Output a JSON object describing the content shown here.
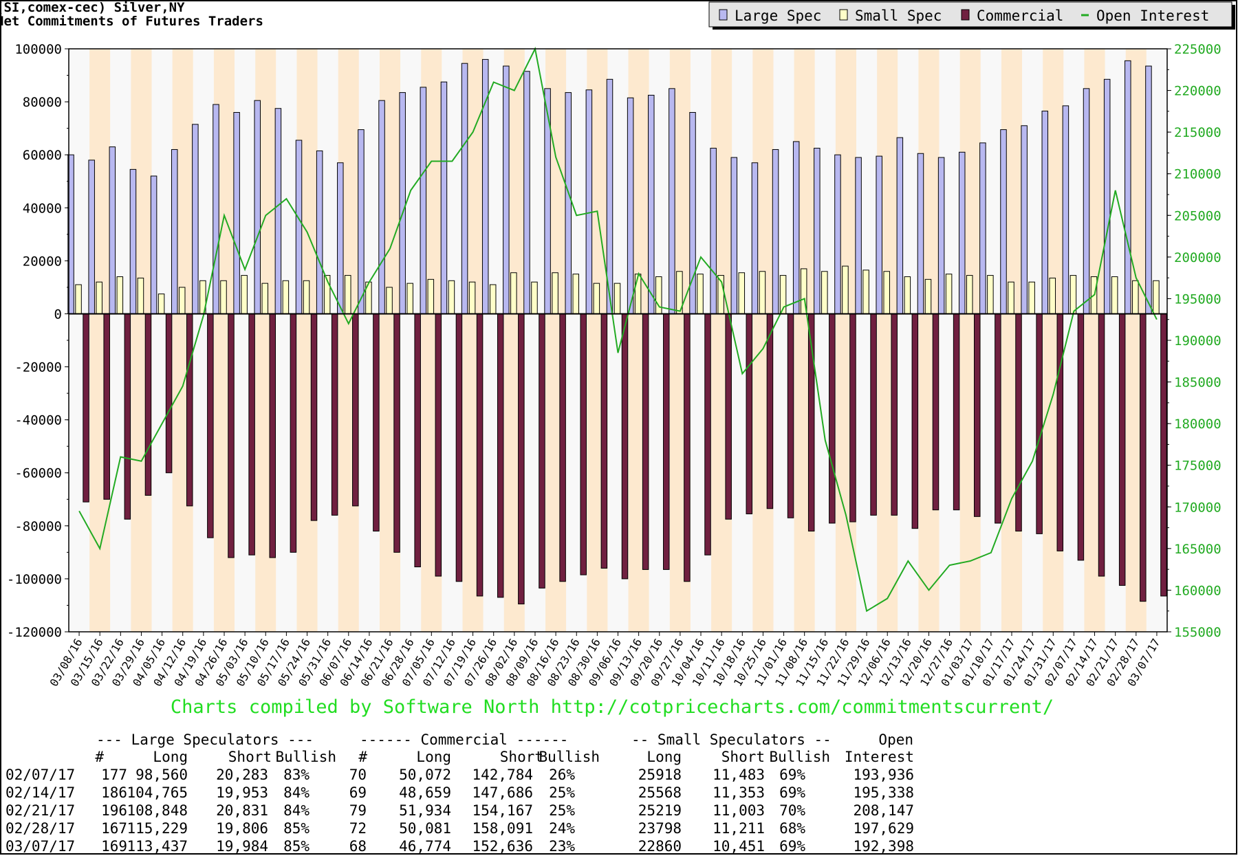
{
  "header": {
    "title_line1": "(SI,comex-cec) Silver,NY",
    "title_line2": "Net Commitments of Futures Traders"
  },
  "legend": {
    "placement": "top-right",
    "items": [
      {
        "label": "Large Spec",
        "color": "#b8b8f0"
      },
      {
        "label": "Small Spec",
        "color": "#ffffc8"
      },
      {
        "label": "Commercial",
        "color": "#702040"
      },
      {
        "label": "Open Interest",
        "color": "#22aa22"
      }
    ]
  },
  "credit": "Charts compiled by Software North  http://cotpricecharts.com/commitmentscurrent/",
  "chart_data": {
    "type": "bar",
    "categories": [
      "03/08/16",
      "03/15/16",
      "03/22/16",
      "03/29/16",
      "04/05/16",
      "04/12/16",
      "04/19/16",
      "04/26/16",
      "05/03/16",
      "05/10/16",
      "05/17/16",
      "05/24/16",
      "05/31/16",
      "06/07/16",
      "06/14/16",
      "06/21/16",
      "06/28/16",
      "07/05/16",
      "07/12/16",
      "07/19/16",
      "07/26/16",
      "08/02/16",
      "08/09/16",
      "08/16/16",
      "08/23/16",
      "08/30/16",
      "09/06/16",
      "09/13/16",
      "09/20/16",
      "09/27/16",
      "10/04/16",
      "10/11/16",
      "10/18/16",
      "10/25/16",
      "11/01/16",
      "11/08/16",
      "11/15/16",
      "11/22/16",
      "11/29/16",
      "12/06/16",
      "12/13/16",
      "12/20/16",
      "12/27/16",
      "01/03/17",
      "01/10/17",
      "01/17/17",
      "01/24/17",
      "01/31/17",
      "02/07/17",
      "02/14/17",
      "02/21/17",
      "02/28/17",
      "03/07/17"
    ],
    "series": [
      {
        "name": "Large Spec",
        "axis": "left",
        "color": "#b8b8f0",
        "values": [
          60000,
          58000,
          63000,
          54500,
          52000,
          62000,
          71500,
          79000,
          76000,
          80500,
          77500,
          65500,
          61500,
          57000,
          69500,
          80500,
          83500,
          85500,
          87500,
          94500,
          96000,
          93500,
          91500,
          85000,
          83500,
          84500,
          88500,
          81500,
          82500,
          85000,
          76000,
          62500,
          59000,
          57000,
          62000,
          65000,
          62500,
          60000,
          59000,
          59500,
          66500,
          60500,
          59000,
          61000,
          64500,
          69500,
          71000,
          76500,
          78500,
          85000,
          88500,
          95500,
          93500
        ]
      },
      {
        "name": "Small Spec",
        "axis": "left",
        "color": "#ffffc8",
        "values": [
          11000,
          12000,
          14000,
          13500,
          7500,
          10000,
          12500,
          12500,
          14500,
          11500,
          12500,
          12500,
          14500,
          14500,
          12000,
          10000,
          11500,
          13000,
          12500,
          12000,
          11000,
          15500,
          12000,
          15500,
          15000,
          11500,
          11500,
          15000,
          14000,
          16000,
          15000,
          14500,
          15500,
          16000,
          14500,
          17000,
          16000,
          18000,
          16500,
          16000,
          14000,
          13000,
          15000,
          14500,
          14500,
          12000,
          12000,
          13500,
          14500,
          14000,
          14000,
          12500,
          12500
        ]
      },
      {
        "name": "Commercial",
        "axis": "left",
        "color": "#702040",
        "values": [
          -71000,
          -70000,
          -77500,
          -68500,
          -60000,
          -72500,
          -84500,
          -92000,
          -91000,
          -92000,
          -90000,
          -78000,
          -76000,
          -72500,
          -82000,
          -90000,
          -95500,
          -99000,
          -101000,
          -106500,
          -107000,
          -109500,
          -103500,
          -101000,
          -98500,
          -96000,
          -100000,
          -96500,
          -96500,
          -101000,
          -91000,
          -77500,
          -75500,
          -73500,
          -77000,
          -82000,
          -79000,
          -78500,
          -76000,
          -76000,
          -81000,
          -74000,
          -74000,
          -76500,
          -79000,
          -82000,
          -83000,
          -89500,
          -93000,
          -99000,
          -102500,
          -108500,
          -106500
        ]
      },
      {
        "name": "Open Interest",
        "axis": "right",
        "color": "#22aa22",
        "values": [
          169500,
          165000,
          176000,
          175500,
          180000,
          184500,
          193000,
          205000,
          198500,
          205000,
          207000,
          203000,
          197000,
          192000,
          197000,
          201000,
          208000,
          211500,
          211500,
          215000,
          221000,
          220000,
          225000,
          212000,
          205000,
          205500,
          188500,
          198000,
          194000,
          193500,
          200000,
          197000,
          186000,
          189000,
          194000,
          195000,
          178000,
          169000,
          157500,
          159000,
          163500,
          160000,
          163000,
          163500,
          164500,
          171000,
          175500,
          183500,
          193500,
          195500,
          208000,
          197500,
          192500
        ]
      }
    ],
    "ylim": [
      -120000,
      100000
    ],
    "y_ticks": [
      "100000",
      "80000",
      "60000",
      "40000",
      "20000",
      "0",
      "-20000",
      "-40000",
      "-60000",
      "-80000",
      "-100000",
      "-120000"
    ],
    "y2lim": [
      155000,
      225000
    ],
    "y2_ticks": [
      "225000",
      "220000",
      "215000",
      "210000",
      "205000",
      "200000",
      "195000",
      "190000",
      "185000",
      "180000",
      "175000",
      "170000",
      "165000",
      "160000",
      "155000"
    ],
    "grid": false
  },
  "table": {
    "group_headers": [
      "--- Large Speculators ---",
      "------ Commercial ------",
      "-- Small Speculators --",
      "Open"
    ],
    "col_headers": [
      "#",
      "Long",
      "Short",
      "Bullish",
      "#",
      "Long",
      "Short",
      "Bullish",
      "Long",
      "Short",
      "Bullish",
      "Interest"
    ],
    "rows": [
      [
        "02/07/17",
        "177",
        "98,560",
        "20,283",
        "83%",
        "70",
        "50,072",
        "142,784",
        "26%",
        "25918",
        "11,483",
        "69%",
        "193,936"
      ],
      [
        "02/14/17",
        "186",
        "104,765",
        "19,953",
        "84%",
        "69",
        "48,659",
        "147,686",
        "25%",
        "25568",
        "11,353",
        "69%",
        "195,338"
      ],
      [
        "02/21/17",
        "196",
        "108,848",
        "20,831",
        "84%",
        "79",
        "51,934",
        "154,167",
        "25%",
        "25219",
        "11,003",
        "70%",
        "208,147"
      ],
      [
        "02/28/17",
        "167",
        "115,229",
        "19,806",
        "85%",
        "72",
        "50,081",
        "158,091",
        "24%",
        "23798",
        "11,211",
        "68%",
        "197,629"
      ],
      [
        "03/07/17",
        "169",
        "113,437",
        "19,984",
        "85%",
        "68",
        "46,774",
        "152,636",
        "23%",
        "22860",
        "10,451",
        "69%",
        "192,398"
      ]
    ]
  }
}
